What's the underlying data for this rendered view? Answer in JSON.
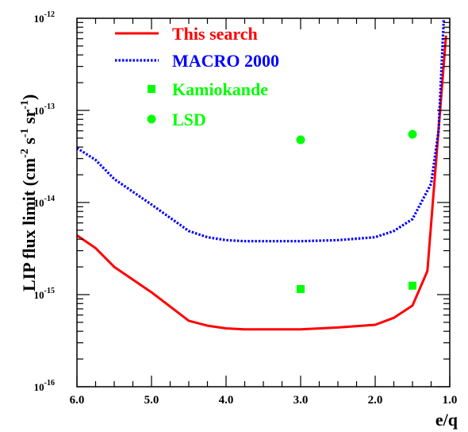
{
  "chart_data": {
    "type": "line",
    "xlabel": "e/q",
    "ylabel": "LIP flux limit (cm^-2 s^-1 sr^-1)",
    "ylabel_parts": {
      "main": "LIP flux limit (cm",
      "e1": "-2",
      "s": " s",
      "e2": "-1",
      "sr": " sr",
      "e3": "-1",
      "close": ")"
    },
    "x_axis": {
      "reversed": true,
      "range": [
        6.0,
        1.0
      ],
      "ticks": [
        "6.0",
        "5.0",
        "4.0",
        "3.0",
        "2.0",
        "1.0"
      ]
    },
    "y_axis": {
      "scale": "log",
      "range": [
        1e-16,
        1e-12
      ],
      "ticks": [
        {
          "base": "10",
          "exp": "-16"
        },
        {
          "base": "10",
          "exp": "-15"
        },
        {
          "base": "10",
          "exp": "-14"
        },
        {
          "base": "10",
          "exp": "-13"
        },
        {
          "base": "10",
          "exp": "-12"
        }
      ]
    },
    "grid": false,
    "legend_position": "top-left",
    "series": [
      {
        "name": "This search",
        "style": "solid",
        "color": "#ff0000",
        "x": [
          6.0,
          5.75,
          5.5,
          5.0,
          4.5,
          4.25,
          4.0,
          3.75,
          3.5,
          3.0,
          2.5,
          2.0,
          1.75,
          1.5,
          1.3,
          1.05
        ],
        "y": [
          4.4e-15,
          3.2e-15,
          2e-15,
          1.06e-15,
          5.2e-16,
          4.6e-16,
          4.3e-16,
          4.2e-16,
          4.2e-16,
          4.2e-16,
          4.4e-16,
          4.7e-16,
          5.6e-16,
          7.6e-16,
          1.8e-15,
          6.5e-13
        ]
      },
      {
        "name": "MACRO 2000",
        "style": "dotted",
        "color": "#0000ff",
        "x": [
          6.0,
          5.75,
          5.5,
          5.0,
          4.5,
          4.25,
          4.0,
          3.75,
          3.5,
          3.0,
          2.5,
          2.0,
          1.75,
          1.5,
          1.25,
          1.15,
          1.08
        ],
        "y": [
          3.9e-14,
          2.9e-14,
          1.8e-14,
          9.5e-15,
          4.9e-15,
          4.2e-15,
          3.9e-15,
          3.8e-15,
          3.8e-15,
          3.8e-15,
          3.9e-15,
          4.2e-15,
          4.9e-15,
          6.6e-15,
          1.6e-14,
          6e-14,
          1e-12
        ]
      },
      {
        "name": "Kamiokande",
        "style": "marker-square",
        "color": "#00ff00",
        "x": [
          3.0,
          1.5
        ],
        "y": [
          1.15e-15,
          1.25e-15
        ]
      },
      {
        "name": "LSD",
        "style": "marker-circle",
        "color": "#00ff00",
        "x": [
          3.0,
          1.5
        ],
        "y": [
          4.8e-14,
          5.5e-14
        ]
      }
    ]
  }
}
